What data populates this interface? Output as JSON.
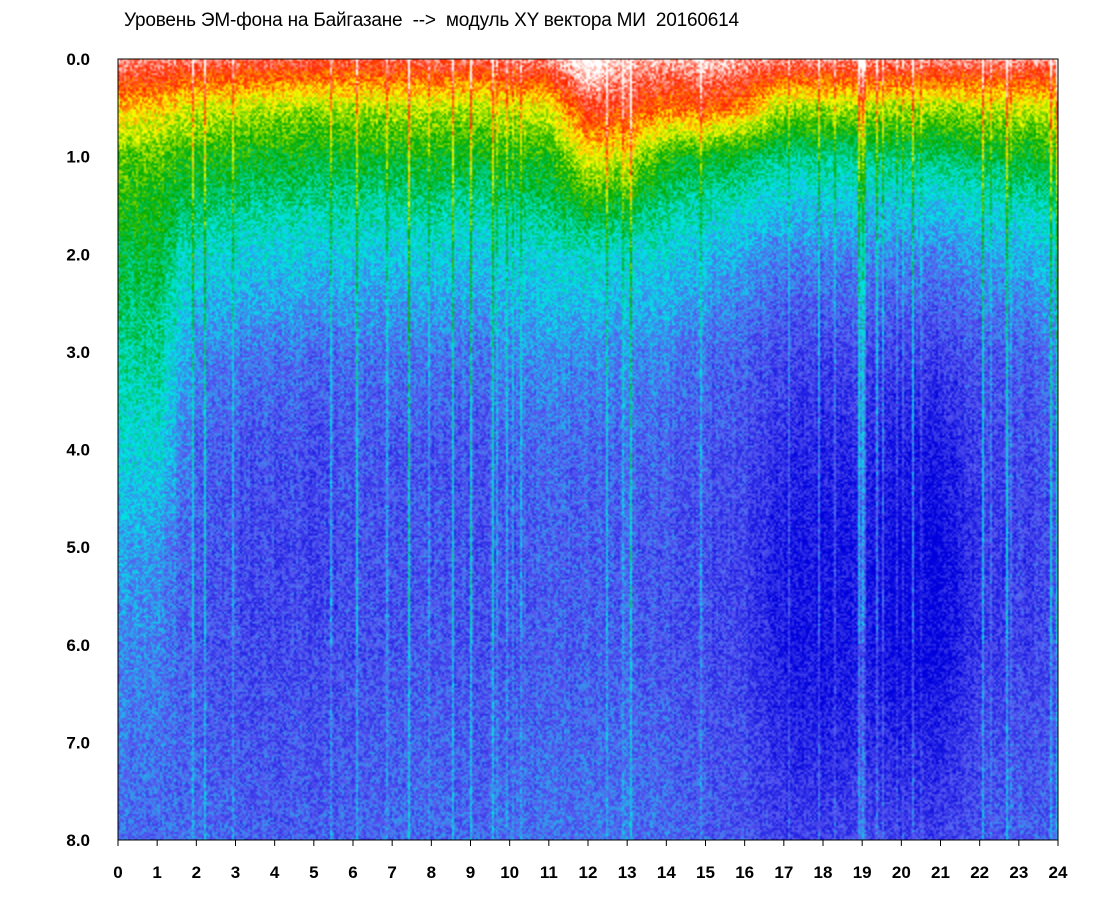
{
  "chart_data": {
    "type": "heatmap",
    "title": "Уровень ЭМ-фона на Байгазане  -->  модуль XY вектора МИ  20160614",
    "xlabel": "",
    "ylabel": "",
    "x_range": [
      0,
      24
    ],
    "y_range": [
      0,
      8
    ],
    "y_inverted": true,
    "x_ticks": [
      "0",
      "1",
      "2",
      "3",
      "4",
      "5",
      "6",
      "7",
      "8",
      "9",
      "10",
      "11",
      "12",
      "13",
      "14",
      "15",
      "16",
      "17",
      "18",
      "19",
      "20",
      "21",
      "22",
      "23",
      "24"
    ],
    "y_ticks": [
      "0.0",
      "1.0",
      "2.0",
      "3.0",
      "4.0",
      "5.0",
      "6.0",
      "7.0",
      "8.0"
    ],
    "grid": false,
    "colorscale": [
      "#0000dd",
      "#5a5af0",
      "#00e6e6",
      "#00aa00",
      "#ffff00",
      "#ff2200",
      "#ffffff"
    ],
    "intensity_grid": {
      "hours": [
        0,
        1,
        2,
        3,
        4,
        5,
        6,
        7,
        8,
        9,
        10,
        11,
        12,
        13,
        14,
        15,
        16,
        17,
        18,
        19,
        20,
        21,
        22,
        23,
        24
      ],
      "depth": [
        0,
        0.5,
        1,
        1.5,
        2,
        3,
        4,
        5,
        6,
        7,
        8
      ],
      "values": [
        [
          5.5,
          4.2,
          3.3,
          3.0,
          2.7,
          2.3,
          1.9,
          1.5,
          1.3,
          1.2,
          1.1
        ],
        [
          5.5,
          4.2,
          3.3,
          3.0,
          2.8,
          2.4,
          2.0,
          1.5,
          1.3,
          1.2,
          1.1
        ],
        [
          5.4,
          3.8,
          3.0,
          2.5,
          2.0,
          1.3,
          1.0,
          0.9,
          0.9,
          1.0,
          1.1
        ],
        [
          5.3,
          3.7,
          2.9,
          2.4,
          1.9,
          1.2,
          0.9,
          0.8,
          0.8,
          0.9,
          1.0
        ],
        [
          5.3,
          3.7,
          2.9,
          2.4,
          1.9,
          1.2,
          0.9,
          0.8,
          0.8,
          0.9,
          1.0
        ],
        [
          5.2,
          3.6,
          2.8,
          2.3,
          1.8,
          1.1,
          0.8,
          0.7,
          0.8,
          0.9,
          1.0
        ],
        [
          5.2,
          3.6,
          2.8,
          2.3,
          1.8,
          1.1,
          0.9,
          0.8,
          0.8,
          0.9,
          1.0
        ],
        [
          5.3,
          3.7,
          2.9,
          2.3,
          1.8,
          1.2,
          0.9,
          0.9,
          0.9,
          1.0,
          1.1
        ],
        [
          5.3,
          3.7,
          2.9,
          2.4,
          1.9,
          1.2,
          0.9,
          0.9,
          0.9,
          1.0,
          1.1
        ],
        [
          5.3,
          3.7,
          2.9,
          2.3,
          1.8,
          1.2,
          0.9,
          0.9,
          0.9,
          1.0,
          1.1
        ],
        [
          5.4,
          3.8,
          3.0,
          2.4,
          1.9,
          1.3,
          1.0,
          0.9,
          0.9,
          1.0,
          1.1
        ],
        [
          5.5,
          3.9,
          3.0,
          2.5,
          2.0,
          1.4,
          1.1,
          1.0,
          1.0,
          1.1,
          1.2
        ],
        [
          6.3,
          5.2,
          4.0,
          3.0,
          2.1,
          1.4,
          1.1,
          1.0,
          1.0,
          1.1,
          1.2
        ],
        [
          5.8,
          5.0,
          3.9,
          2.8,
          2.0,
          1.4,
          1.1,
          1.0,
          1.0,
          1.1,
          1.2
        ],
        [
          5.6,
          4.6,
          3.0,
          2.4,
          1.9,
          1.3,
          1.0,
          0.9,
          0.9,
          1.0,
          1.1
        ],
        [
          5.8,
          4.8,
          2.9,
          2.2,
          1.7,
          1.1,
          0.9,
          0.8,
          0.8,
          0.9,
          1.0
        ],
        [
          5.6,
          4.5,
          2.7,
          2.0,
          1.5,
          1.0,
          0.8,
          0.7,
          0.7,
          0.8,
          0.9
        ],
        [
          5.5,
          3.6,
          2.4,
          1.8,
          1.3,
          0.8,
          0.5,
          0.3,
          0.3,
          0.5,
          0.7
        ],
        [
          5.5,
          3.6,
          2.4,
          1.8,
          1.3,
          0.7,
          0.4,
          0.2,
          0.2,
          0.4,
          0.7
        ],
        [
          5.5,
          3.6,
          2.4,
          1.8,
          1.3,
          0.8,
          0.5,
          0.3,
          0.3,
          0.5,
          0.8
        ],
        [
          5.5,
          3.6,
          2.5,
          1.8,
          1.3,
          0.7,
          0.3,
          0.1,
          0.1,
          0.4,
          0.7
        ],
        [
          5.5,
          3.6,
          2.5,
          1.8,
          1.3,
          0.7,
          0.3,
          0.1,
          0.1,
          0.4,
          0.7
        ],
        [
          5.5,
          3.7,
          2.7,
          2.0,
          1.5,
          0.9,
          0.7,
          0.6,
          0.6,
          0.8,
          0.9
        ],
        [
          5.5,
          3.8,
          2.8,
          2.1,
          1.6,
          1.0,
          0.8,
          0.7,
          0.7,
          0.9,
          1.0
        ],
        [
          5.5,
          3.8,
          3.0,
          2.3,
          1.8,
          1.2,
          0.9,
          0.8,
          0.8,
          0.9,
          1.0
        ]
      ]
    }
  }
}
